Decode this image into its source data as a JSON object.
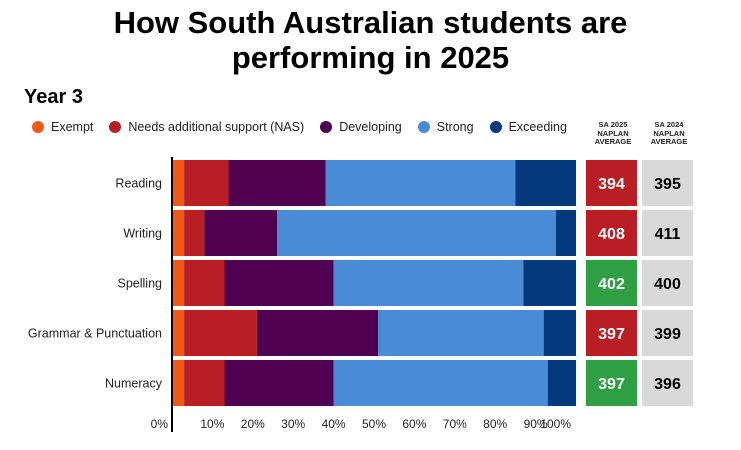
{
  "title_lines": [
    "How South Australian students are",
    "performing in 2025"
  ],
  "subtitle": "Year 3",
  "legend": [
    {
      "label": "Exempt",
      "color": "#f05a14"
    },
    {
      "label": "Needs additional support (NAS)",
      "color": "#b81e23"
    },
    {
      "label": "Developing",
      "color": "#500050"
    },
    {
      "label": "Strong",
      "color": "#4a8bd6"
    },
    {
      "label": "Exceeding",
      "color": "#063a7e"
    }
  ],
  "column_headers": {
    "sa2025": [
      "SA 2025",
      "NAPLAN",
      "AVERAGE"
    ],
    "sa2024": [
      "SA 2024",
      "NAPLAN",
      "AVERAGE"
    ]
  },
  "colors": {
    "below": "#b81e23",
    "above": "#2ea043",
    "previous": "#d9d9d9"
  },
  "chart_data": {
    "type": "bar",
    "orientation": "horizontal",
    "stacked": true,
    "categories": [
      "Reading",
      "Writing",
      "Spelling",
      "Grammar & Punctuation",
      "Numeracy"
    ],
    "series": [
      {
        "name": "Exempt",
        "values": [
          3,
          3,
          3,
          3,
          3
        ]
      },
      {
        "name": "Needs additional support (NAS)",
        "values": [
          11,
          5,
          10,
          18,
          10
        ]
      },
      {
        "name": "Developing",
        "values": [
          24,
          18,
          27,
          30,
          27
        ]
      },
      {
        "name": "Strong",
        "values": [
          47,
          69,
          47,
          41,
          53
        ]
      },
      {
        "name": "Exceeding",
        "values": [
          15,
          5,
          13,
          8,
          7
        ]
      }
    ],
    "xlim": [
      0,
      100
    ],
    "x_ticks": [
      "0%",
      "10%",
      "20%",
      "30%",
      "40%",
      "50%",
      "60%",
      "70%",
      "80%",
      "90%",
      "100%"
    ],
    "sa2025_average": [
      394,
      408,
      402,
      397,
      397
    ],
    "sa2025_status": [
      "below",
      "below",
      "above",
      "below",
      "above"
    ],
    "sa2024_average": [
      395,
      411,
      400,
      399,
      396
    ]
  }
}
